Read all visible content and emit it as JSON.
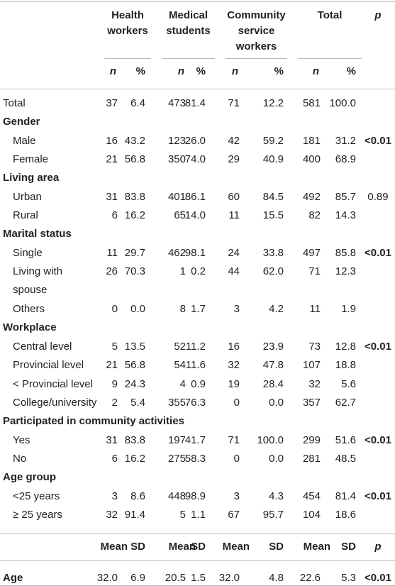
{
  "header": {
    "groups": [
      "Health workers",
      "Medical students",
      "Community service workers",
      "Total"
    ],
    "p": "p",
    "sub": [
      "n",
      "%",
      "n",
      "%",
      "n",
      "%",
      "n",
      "%"
    ]
  },
  "rows": [
    {
      "label": "Total",
      "cells": [
        "37",
        "6.4",
        "473",
        "81.4",
        "71",
        "12.2",
        "581",
        "100.0"
      ]
    },
    {
      "section": "Gender"
    },
    {
      "label": "Male",
      "cells": [
        "16",
        "43.2",
        "123",
        "26.0",
        "42",
        "59.2",
        "181",
        "31.2"
      ],
      "p": "<0.01"
    },
    {
      "label": "Female",
      "cells": [
        "21",
        "56.8",
        "350",
        "74.0",
        "29",
        "40.9",
        "400",
        "68.9"
      ]
    },
    {
      "section": "Living area"
    },
    {
      "label": "Urban",
      "cells": [
        "31",
        "83.8",
        "401",
        "86.1",
        "60",
        "84.5",
        "492",
        "85.7"
      ],
      "p": "0.89"
    },
    {
      "label": "Rural",
      "cells": [
        "6",
        "16.2",
        "65",
        "14.0",
        "11",
        "15.5",
        "82",
        "14.3"
      ]
    },
    {
      "section": "Marital status"
    },
    {
      "label": "Single",
      "cells": [
        "11",
        "29.7",
        "462",
        "98.1",
        "24",
        "33.8",
        "497",
        "85.8"
      ],
      "p": "<0.01"
    },
    {
      "label": "Living with spouse",
      "cells": [
        "26",
        "70.3",
        "1",
        "0.2",
        "44",
        "62.0",
        "71",
        "12.3"
      ]
    },
    {
      "label": "Others",
      "cells": [
        "0",
        "0.0",
        "8",
        "1.7",
        "3",
        "4.2",
        "11",
        "1.9"
      ]
    },
    {
      "section": "Workplace"
    },
    {
      "label": "Central level",
      "cells": [
        "5",
        "13.5",
        "52",
        "11.2",
        "16",
        "23.9",
        "73",
        "12.8"
      ],
      "p": "<0.01"
    },
    {
      "label": "Provincial level",
      "cells": [
        "21",
        "56.8",
        "54",
        "11.6",
        "32",
        "47.8",
        "107",
        "18.8"
      ]
    },
    {
      "label": "< Provincial level",
      "cells": [
        "9",
        "24.3",
        "4",
        "0.9",
        "19",
        "28.4",
        "32",
        "5.6"
      ]
    },
    {
      "label": "College/university",
      "cells": [
        "2",
        "5.4",
        "355",
        "76.3",
        "0",
        "0.0",
        "357",
        "62.7"
      ]
    },
    {
      "section": "Participated in community activities"
    },
    {
      "label": "Yes",
      "cells": [
        "31",
        "83.8",
        "197",
        "41.7",
        "71",
        "100.0",
        "299",
        "51.6"
      ],
      "p": "<0.01"
    },
    {
      "label": "No",
      "cells": [
        "6",
        "16.2",
        "275",
        "58.3",
        "0",
        "0.0",
        "281",
        "48.5"
      ]
    },
    {
      "section": "Age group"
    },
    {
      "label": "<25 years",
      "cells": [
        "3",
        "8.6",
        "448",
        "98.9",
        "3",
        "4.3",
        "454",
        "81.4"
      ],
      "p": "<0.01"
    },
    {
      "label": "≥ 25 years",
      "cells": [
        "32",
        "91.4",
        "5",
        "1.1",
        "67",
        "95.7",
        "104",
        "18.6"
      ]
    }
  ],
  "stats_header": {
    "sub": [
      "Mean",
      "SD",
      "Mean",
      "SD",
      "Mean",
      "SD",
      "Mean",
      "SD"
    ],
    "p": "p"
  },
  "age_row": {
    "label": "Age",
    "cells": [
      "32.0",
      "6.9",
      "20.5",
      "1.5",
      "32.0",
      "4.8",
      "22.6",
      "5.3"
    ],
    "p": "<0.01"
  }
}
